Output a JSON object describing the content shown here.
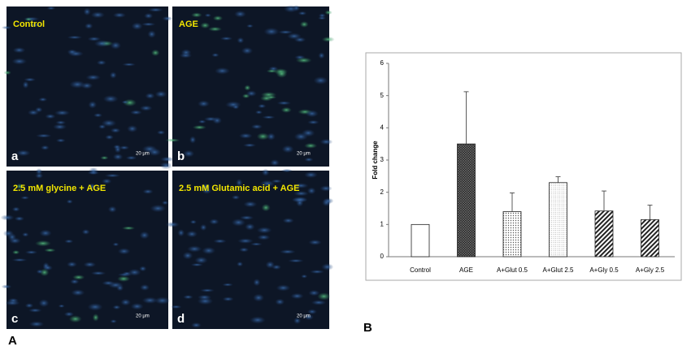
{
  "figure": {
    "panel_a_label": "A",
    "panel_b_label": "B",
    "images": [
      {
        "label": "Control",
        "letter": "a",
        "scale": "20 μm"
      },
      {
        "label": "AGE",
        "letter": "b",
        "scale": "20 μm"
      },
      {
        "label": "2.5 mM glycine + AGE",
        "letter": "c",
        "scale": "20 μm"
      },
      {
        "label": "2.5 mM Glutamic acid + AGE",
        "letter": "d",
        "scale": "20 μm"
      }
    ]
  },
  "chart_data": {
    "type": "bar",
    "ylabel": "Fold change",
    "categories": [
      "Control",
      "AGE",
      "A+Glut 0.5",
      "A+Glut 2.5",
      "A+Gly 0.5",
      "A+Gly 2.5"
    ],
    "values": [
      1,
      3.5,
      1.4,
      2.3,
      1.42,
      1.15
    ],
    "errors": [
      null,
      1.62,
      0.58,
      0.18,
      0.62,
      0.45
    ],
    "bar_styles": [
      "white",
      "crosshatch",
      "dots",
      "fine-dots",
      "stripes",
      "stripes"
    ],
    "ylim": [
      0,
      6
    ],
    "yticks": [
      0,
      1,
      2,
      3,
      4,
      5,
      6
    ]
  }
}
